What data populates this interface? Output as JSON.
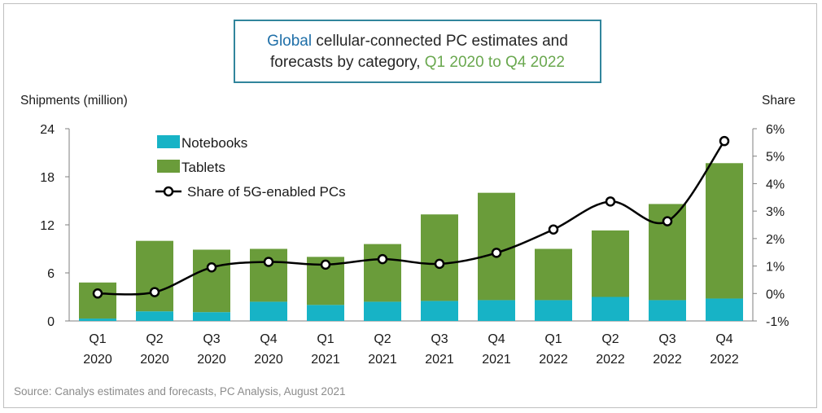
{
  "title": {
    "part1": "Global",
    "part2": " cellular-connected PC estimates and",
    "part3": "forecasts by category, ",
    "part4": "Q1 2020 to Q4 2022"
  },
  "colors": {
    "notebooks": "#17b3c6",
    "tablets": "#6a9c3a",
    "line": "#000000",
    "title_accent_blue": "#1f6fa8",
    "title_accent_green": "#6aa84f"
  },
  "source": "Source: Canalys estimates and forecasts, PC Analysis, August 2021",
  "chart_data": {
    "type": "bar",
    "stacked": true,
    "categories": [
      [
        "Q1",
        "2020"
      ],
      [
        "Q2",
        "2020"
      ],
      [
        "Q3",
        "2020"
      ],
      [
        "Q4",
        "2020"
      ],
      [
        "Q1",
        "2021"
      ],
      [
        "Q2",
        "2021"
      ],
      [
        "Q3",
        "2021"
      ],
      [
        "Q4",
        "2021"
      ],
      [
        "Q1",
        "2022"
      ],
      [
        "Q2",
        "2022"
      ],
      [
        "Q3",
        "2022"
      ],
      [
        "Q4",
        "2022"
      ]
    ],
    "series": [
      {
        "name": "Notebooks",
        "type": "bar",
        "axis": "left",
        "values": [
          0.3,
          1.2,
          1.1,
          2.4,
          2.0,
          2.4,
          2.5,
          2.6,
          2.6,
          3.0,
          2.6,
          2.8
        ]
      },
      {
        "name": "Tablets",
        "type": "bar",
        "axis": "left",
        "values": [
          4.5,
          8.8,
          7.8,
          6.6,
          6.0,
          7.2,
          10.8,
          13.4,
          6.4,
          8.3,
          12.0,
          16.9
        ]
      },
      {
        "name": "Share of 5G-enabled PCs",
        "type": "line",
        "axis": "right",
        "values": [
          0.0,
          0.05,
          0.95,
          1.15,
          1.05,
          1.25,
          1.08,
          1.48,
          2.33,
          3.35,
          2.63,
          5.55
        ]
      }
    ],
    "ylabel_left": "Shipments (million)",
    "ylabel_right": "Share",
    "ylim_left": [
      0,
      24
    ],
    "yticks_left": [
      "0",
      "6",
      "12",
      "18",
      "24"
    ],
    "ylim_right": [
      -1,
      6
    ],
    "yticks_right": [
      "-1%",
      "0%",
      "1%",
      "2%",
      "3%",
      "4%",
      "5%",
      "6%"
    ],
    "legend_position": "top-left"
  }
}
